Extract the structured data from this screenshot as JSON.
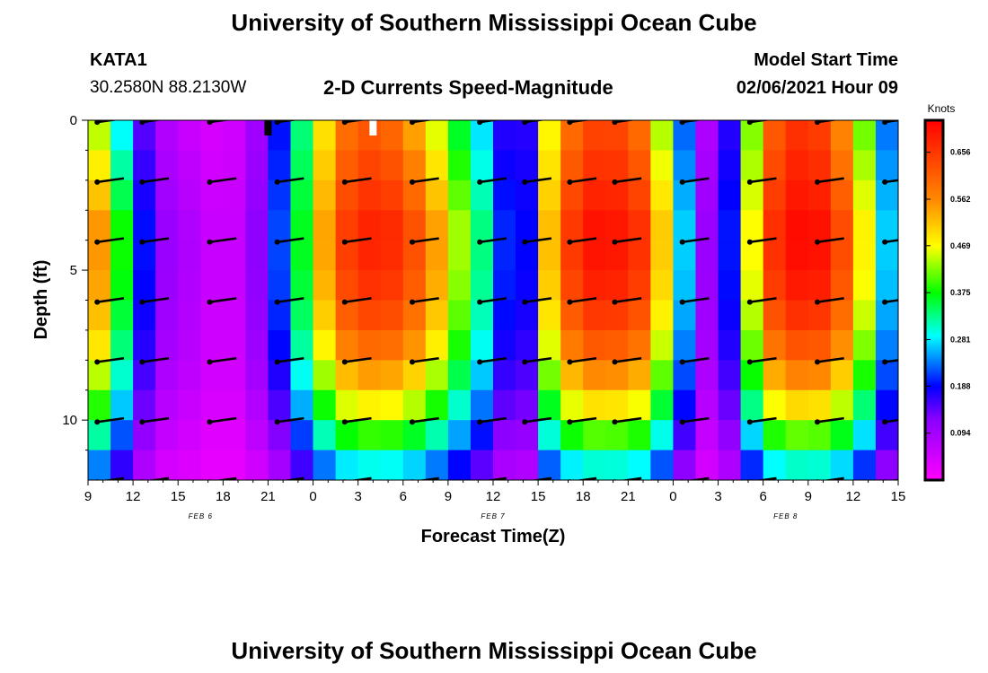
{
  "header": {
    "title": "University of Southern Mississippi Ocean Cube",
    "station_id": "KATA1",
    "station_coords": "30.2580N 88.2130W",
    "plot_title": "2-D Currents Speed-Magnitude",
    "model_label": "Model Start Time",
    "model_time": "02/06/2021 Hour 09"
  },
  "footer": {
    "title": "University of Southern Mississippi Ocean Cube"
  },
  "chart_data": {
    "type": "heatmap",
    "title": "2-D Currents Speed-Magnitude",
    "xlabel": "Forecast Time(Z)",
    "ylabel": "Depth (ft)",
    "x_range_hours": [
      0,
      54
    ],
    "y_range_ft": [
      0,
      12
    ],
    "y_reversed": true,
    "xticks": [
      {
        "h": 0,
        "label": "9"
      },
      {
        "h": 3,
        "label": "12"
      },
      {
        "h": 6,
        "label": "15"
      },
      {
        "h": 9,
        "label": "18"
      },
      {
        "h": 12,
        "label": "21"
      },
      {
        "h": 15,
        "label": "0"
      },
      {
        "h": 18,
        "label": "3"
      },
      {
        "h": 21,
        "label": "6"
      },
      {
        "h": 24,
        "label": "9"
      },
      {
        "h": 27,
        "label": "12"
      },
      {
        "h": 30,
        "label": "15"
      },
      {
        "h": 33,
        "label": "18"
      },
      {
        "h": 36,
        "label": "21"
      },
      {
        "h": 39,
        "label": "0"
      },
      {
        "h": 42,
        "label": "3"
      },
      {
        "h": 45,
        "label": "6"
      },
      {
        "h": 48,
        "label": "9"
      },
      {
        "h": 51,
        "label": "12"
      },
      {
        "h": 54,
        "label": "15"
      }
    ],
    "yticks": [
      {
        "v": 0,
        "label": "0"
      },
      {
        "v": 5,
        "label": "5"
      },
      {
        "v": 10,
        "label": "10"
      }
    ],
    "date_labels": [
      {
        "h": 7.5,
        "label": "FEB 6"
      },
      {
        "h": 27,
        "label": "FEB 7"
      },
      {
        "h": 46.5,
        "label": "FEB 8"
      }
    ],
    "colorbar": {
      "unit": "Knots",
      "min": 0.0,
      "max": 0.72,
      "ticks": [
        0.094,
        0.188,
        0.281,
        0.375,
        0.469,
        0.562,
        0.656
      ],
      "tick_labels": [
        "0.094",
        "0.188",
        "0.281",
        "0.375",
        "0.469",
        "0.562",
        "0.656"
      ]
    },
    "speed_profile": [
      [
        0.0,
        0.36,
        0.5
      ],
      [
        1.0,
        0.45,
        0.57
      ],
      [
        2.0,
        0.3,
        0.42
      ],
      [
        3.0,
        0.2,
        0.26
      ],
      [
        4.0,
        0.12,
        0.17
      ],
      [
        5.0,
        0.08,
        0.11
      ],
      [
        6.0,
        0.06,
        0.09
      ],
      [
        7.0,
        0.05,
        0.08
      ],
      [
        8.0,
        0.04,
        0.06
      ],
      [
        9.0,
        0.04,
        0.05
      ],
      [
        10.0,
        0.05,
        0.06
      ],
      [
        11.0,
        0.08,
        0.1
      ],
      [
        12.0,
        0.14,
        0.16
      ],
      [
        13.5,
        0.24,
        0.27
      ],
      [
        15.0,
        0.42,
        0.46
      ],
      [
        16.5,
        0.55,
        0.62
      ],
      [
        18.0,
        0.62,
        0.68
      ],
      [
        20.0,
        0.6,
        0.68
      ],
      [
        22.0,
        0.52,
        0.62
      ],
      [
        24.0,
        0.4,
        0.5
      ],
      [
        25.5,
        0.3,
        0.37
      ],
      [
        26.5,
        0.26,
        0.32
      ],
      [
        27.5,
        0.2,
        0.24
      ],
      [
        28.5,
        0.07,
        0.09
      ],
      [
        29.5,
        0.2,
        0.22
      ],
      [
        31.0,
        0.52,
        0.58
      ],
      [
        33.0,
        0.63,
        0.7
      ],
      [
        35.0,
        0.64,
        0.7
      ],
      [
        37.0,
        0.58,
        0.66
      ],
      [
        38.5,
        0.4,
        0.48
      ],
      [
        39.5,
        0.25,
        0.3
      ],
      [
        40.5,
        0.14,
        0.18
      ],
      [
        41.5,
        0.06,
        0.08
      ],
      [
        42.5,
        0.14,
        0.16
      ],
      [
        43.5,
        0.25,
        0.3
      ],
      [
        45.0,
        0.58,
        0.64
      ],
      [
        47.0,
        0.66,
        0.71
      ],
      [
        49.0,
        0.64,
        0.7
      ],
      [
        50.5,
        0.54,
        0.62
      ],
      [
        52.0,
        0.38,
        0.45
      ],
      [
        53.0,
        0.26,
        0.3
      ],
      [
        54.0,
        0.14,
        0.18
      ]
    ],
    "vector_hours": [
      1.5,
      4.5,
      9,
      13.5,
      18,
      22.5,
      27,
      30,
      33,
      36,
      40.5,
      45,
      49.5,
      54
    ],
    "vector_depths": [
      0,
      2,
      4,
      6,
      8,
      10,
      12
    ],
    "vector_angle_deg": 8,
    "timeline_markers": [
      {
        "h": 12,
        "color": "#000000"
      },
      {
        "h": 19,
        "color": "#ffffff"
      }
    ]
  }
}
